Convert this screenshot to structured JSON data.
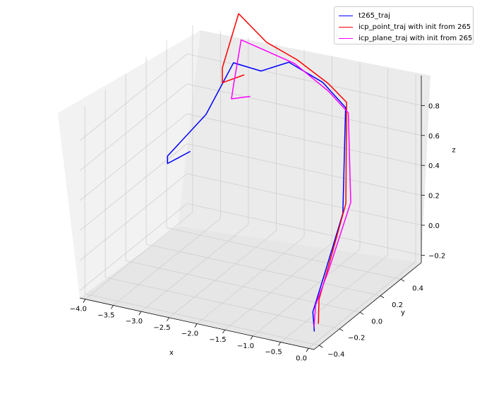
{
  "chart_data": {
    "type": "line",
    "projection": "3d",
    "xlabel": "x",
    "ylabel": "y",
    "zlabel": "z",
    "xlim": [
      -4.1,
      0.1
    ],
    "ylim": [
      -0.45,
      0.6
    ],
    "zlim": [
      -0.25,
      1.0
    ],
    "xticks": [
      "−4.0",
      "−3.5",
      "−3.0",
      "−2.5",
      "−2.0",
      "−1.5",
      "−1.0",
      "−0.5",
      "0.0"
    ],
    "yticks": [
      "−0.4",
      "−0.2",
      "0.0",
      "0.2",
      "0.4"
    ],
    "zticks": [
      "−0.2",
      "0.0",
      "0.2",
      "0.4",
      "0.6",
      "0.8"
    ],
    "grid": true,
    "legend_position": "top-right",
    "series": [
      {
        "name": "t265_traj",
        "color": "#0000ff",
        "points": [
          [
            0.05,
            -0.42,
            -0.15
          ],
          [
            -0.05,
            -0.38,
            -0.05
          ],
          [
            -0.1,
            -0.25,
            0.1
          ],
          [
            -0.3,
            0.05,
            0.35
          ],
          [
            -0.8,
            0.35,
            0.85
          ],
          [
            -1.3,
            0.4,
            0.95
          ],
          [
            -2.0,
            0.45,
            1.0
          ],
          [
            -2.5,
            0.45,
            0.9
          ],
          [
            -2.9,
            0.4,
            0.95
          ],
          [
            -3.3,
            0.35,
            0.6
          ],
          [
            -3.9,
            0.3,
            0.3
          ],
          [
            -3.9,
            0.3,
            0.25
          ],
          [
            -3.4,
            0.25,
            0.4
          ]
        ]
      },
      {
        "name": "icp_point_traj with init from 265",
        "color": "#ff0000",
        "points": [
          [
            0.05,
            -0.38,
            -0.12
          ],
          [
            -0.05,
            -0.32,
            0.0
          ],
          [
            -0.1,
            -0.2,
            0.15
          ],
          [
            -0.3,
            0.08,
            0.4
          ],
          [
            -0.8,
            0.36,
            0.88
          ],
          [
            -1.2,
            0.4,
            0.95
          ],
          [
            -1.8,
            0.42,
            1.05
          ],
          [
            -2.4,
            0.45,
            1.1
          ],
          [
            -2.9,
            0.45,
            1.25
          ],
          [
            -3.1,
            0.4,
            0.9
          ],
          [
            -3.1,
            0.4,
            0.8
          ],
          [
            -2.8,
            0.45,
            0.85
          ]
        ]
      },
      {
        "name": "icp_plane_traj with init from 265",
        "color": "#ff00ff",
        "points": [
          [
            0.1,
            -0.45,
            -0.1
          ],
          [
            0.0,
            -0.38,
            0.0
          ],
          [
            -0.05,
            -0.22,
            0.15
          ],
          [
            -0.25,
            0.1,
            0.4
          ],
          [
            -0.75,
            0.35,
            0.82
          ],
          [
            -1.2,
            0.4,
            0.9
          ],
          [
            -1.9,
            0.45,
            1.0
          ],
          [
            -2.5,
            0.45,
            1.05
          ],
          [
            -2.8,
            0.42,
            1.1
          ],
          [
            -2.9,
            0.4,
            0.8
          ],
          [
            -2.9,
            0.38,
            0.72
          ],
          [
            -2.6,
            0.4,
            0.75
          ]
        ]
      }
    ]
  }
}
